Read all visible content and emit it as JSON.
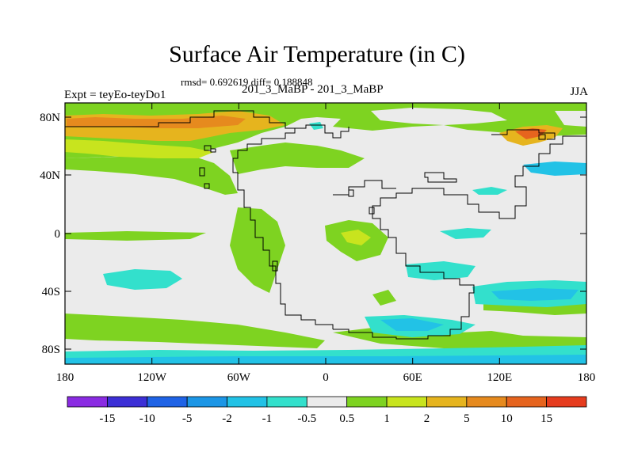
{
  "title": "Surface Air Temperature (in C)",
  "stats_line": "rmsd= 0.692619 diff= 0.188848",
  "left_label": "Expt = teyEo-teyDo1",
  "center_label": "201_3_MaBP - 201_3_MaBP",
  "right_label": "JJA",
  "y_ticks": [
    "80N",
    "40N",
    "0",
    "40S",
    "80S"
  ],
  "x_ticks": [
    "180",
    "120W",
    "60W",
    "0",
    "60E",
    "120E",
    "180"
  ],
  "colorbar": {
    "labels": [
      "-15",
      "-10",
      "-5",
      "-2",
      "-1",
      "-0.5",
      "0.5",
      "1",
      "2",
      "5",
      "10",
      "15"
    ],
    "colors": [
      "#8a2be2",
      "#3c2fd6",
      "#1f63e6",
      "#1c96e6",
      "#22c2e6",
      "#33e0cc",
      "#ebebeb",
      "#7ed321",
      "#c8e41e",
      "#e6b41e",
      "#e68a1e",
      "#e6641e",
      "#e63c1e"
    ]
  }
}
